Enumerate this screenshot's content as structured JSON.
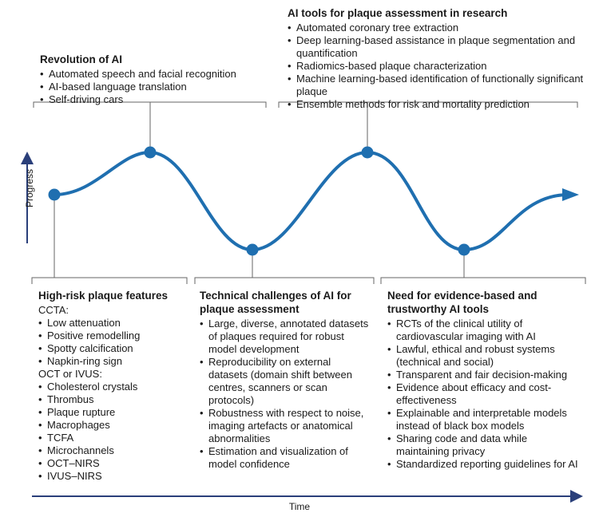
{
  "axes": {
    "y_label": "Progress",
    "x_label": "Time"
  },
  "colors": {
    "curve": "#1f6fb0",
    "axis": "#2a3f7a",
    "frame": "#666666"
  },
  "boxes": {
    "revolution": {
      "title": "Revolution of AI",
      "items": [
        "Automated speech and facial recognition",
        "AI-based language translation",
        "Self-driving cars"
      ]
    },
    "tools": {
      "title": "AI tools for plaque assessment in research",
      "items": [
        "Automated coronary tree extraction",
        "Deep learning-based assistance in plaque segmentation and quantification",
        "Radiomics-based plaque characterization",
        "Machine learning-based identification of functionally significant plaque",
        "Ensemble methods for risk and mortality prediction"
      ]
    },
    "highrisk": {
      "title": "High-risk plaque features",
      "group1_label": "CCTA:",
      "group1_items": [
        "Low attenuation",
        "Positive remodelling",
        "Spotty calcification",
        "Napkin-ring sign"
      ],
      "group2_label": "OCT or IVUS:",
      "group2_items": [
        "Cholesterol crystals",
        "Thrombus",
        "Plaque rupture",
        "Macrophages",
        "TCFA",
        "Microchannels",
        "OCT–NIRS",
        "IVUS–NIRS"
      ]
    },
    "technical": {
      "title": "Technical challenges of AI for plaque assessment",
      "items": [
        "Large, diverse, annotated datasets of plaques required for robust model development",
        "Reproducibility on external datasets (domain shift between centres, scanners or scan protocols)",
        "Robustness with respect to noise, imaging artefacts or anatomical abnormalities",
        "Estimation and visualization of model confidence"
      ]
    },
    "evidence": {
      "title": "Need for evidence-based and trustworthy AI tools",
      "items": [
        "RCTs of the clinical utility of cardiovascular imaging with AI",
        "Lawful, ethical and robust systems (technical and social)",
        "Transparent and fair decision-making",
        "Evidence about efficacy and cost-effectiveness",
        "Explainable and interpretable models instead of black box models",
        "Sharing code and data while maintaining privacy",
        "Standardized reporting guidelines for AI"
      ]
    }
  }
}
